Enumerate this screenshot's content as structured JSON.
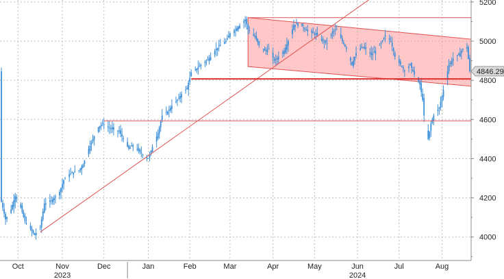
{
  "chart_data": {
    "type": "candlestick",
    "title": "",
    "xlabel": "",
    "ylabel": "",
    "ylim": [
      3880,
      5210
    ],
    "x_range": [
      "2023-10-01",
      "2024-09-05"
    ],
    "grid": true,
    "y_ticks": [
      4000,
      4200,
      4400,
      4600,
      4800,
      5000,
      5200
    ],
    "y_tick_labels": [
      "4000",
      "4200",
      "4400",
      "4600",
      "4800",
      "5000",
      "5200"
    ],
    "x_ticks": [
      {
        "date": "2023-10-14",
        "label": "Oct"
      },
      {
        "date": "2023-11-15",
        "label": "Nov"
      },
      {
        "date": "2023-12-15",
        "label": "Dec"
      },
      {
        "date": "2024-01-16",
        "label": "Jan"
      },
      {
        "date": "2024-02-15",
        "label": "Feb"
      },
      {
        "date": "2024-03-15",
        "label": "Mar"
      },
      {
        "date": "2024-04-15",
        "label": "Apr"
      },
      {
        "date": "2024-05-15",
        "label": "May"
      },
      {
        "date": "2024-06-15",
        "label": "Jun"
      },
      {
        "date": "2024-07-15",
        "label": "Jul"
      },
      {
        "date": "2024-08-15",
        "label": "Aug"
      }
    ],
    "year_labels": [
      {
        "date": "2023-11-15",
        "label": "2023"
      },
      {
        "date": "2024-06-15",
        "label": "2024"
      }
    ],
    "last_value": 4846.29,
    "last_value_label": "4846.29",
    "series_color": "#3b8fd9",
    "price_path": [
      [
        "2023-10-02",
        4180
      ],
      [
        "2023-10-05",
        4090
      ],
      [
        "2023-10-09",
        4140
      ],
      [
        "2023-10-12",
        4210
      ],
      [
        "2023-10-16",
        4150
      ],
      [
        "2023-10-19",
        4080
      ],
      [
        "2023-10-23",
        4040
      ],
      [
        "2023-10-26",
        4010
      ],
      [
        "2023-10-30",
        4050
      ],
      [
        "2023-11-02",
        4170
      ],
      [
        "2023-11-06",
        4180
      ],
      [
        "2023-11-09",
        4200
      ],
      [
        "2023-11-13",
        4230
      ],
      [
        "2023-11-16",
        4290
      ],
      [
        "2023-11-20",
        4320
      ],
      [
        "2023-11-23",
        4330
      ],
      [
        "2023-11-27",
        4340
      ],
      [
        "2023-11-30",
        4370
      ],
      [
        "2023-12-04",
        4450
      ],
      [
        "2023-12-07",
        4500
      ],
      [
        "2023-12-11",
        4560
      ],
      [
        "2023-12-14",
        4580
      ],
      [
        "2023-12-18",
        4560
      ],
      [
        "2023-12-21",
        4550
      ],
      [
        "2023-12-26",
        4540
      ],
      [
        "2023-12-29",
        4500
      ],
      [
        "2024-01-02",
        4450
      ],
      [
        "2024-01-05",
        4470
      ],
      [
        "2024-01-09",
        4440
      ],
      [
        "2024-01-12",
        4420
      ],
      [
        "2024-01-16",
        4400
      ],
      [
        "2024-01-19",
        4460
      ],
      [
        "2024-01-23",
        4530
      ],
      [
        "2024-01-26",
        4620
      ],
      [
        "2024-01-30",
        4640
      ],
      [
        "2024-02-02",
        4670
      ],
      [
        "2024-02-06",
        4700
      ],
      [
        "2024-02-09",
        4730
      ],
      [
        "2024-02-13",
        4760
      ],
      [
        "2024-02-16",
        4840
      ],
      [
        "2024-02-20",
        4860
      ],
      [
        "2024-02-23",
        4880
      ],
      [
        "2024-02-27",
        4900
      ],
      [
        "2024-03-01",
        4920
      ],
      [
        "2024-03-05",
        4960
      ],
      [
        "2024-03-08",
        4980
      ],
      [
        "2024-03-12",
        5000
      ],
      [
        "2024-03-15",
        5040
      ],
      [
        "2024-03-19",
        5060
      ],
      [
        "2024-03-22",
        5080
      ],
      [
        "2024-03-26",
        5110
      ],
      [
        "2024-03-28",
        5060
      ],
      [
        "2024-04-02",
        5020
      ],
      [
        "2024-04-05",
        4980
      ],
      [
        "2024-04-09",
        4950
      ],
      [
        "2024-04-12",
        4960
      ],
      [
        "2024-04-16",
        4900
      ],
      [
        "2024-04-19",
        4920
      ],
      [
        "2024-04-23",
        4950
      ],
      [
        "2024-04-26",
        5000
      ],
      [
        "2024-04-30",
        5080
      ],
      [
        "2024-05-03",
        5090
      ],
      [
        "2024-05-07",
        5070
      ],
      [
        "2024-05-10",
        5050
      ],
      [
        "2024-05-14",
        5040
      ],
      [
        "2024-05-17",
        5030
      ],
      [
        "2024-05-21",
        5000
      ],
      [
        "2024-05-24",
        4990
      ],
      [
        "2024-05-28",
        5050
      ],
      [
        "2024-05-31",
        5060
      ],
      [
        "2024-06-04",
        5000
      ],
      [
        "2024-06-07",
        4960
      ],
      [
        "2024-06-11",
        4880
      ],
      [
        "2024-06-14",
        4940
      ],
      [
        "2024-06-18",
        4970
      ],
      [
        "2024-06-21",
        4960
      ],
      [
        "2024-06-25",
        4930
      ],
      [
        "2024-06-28",
        4950
      ],
      [
        "2024-07-02",
        4990
      ],
      [
        "2024-07-05",
        5030
      ],
      [
        "2024-07-09",
        5000
      ],
      [
        "2024-07-12",
        4920
      ],
      [
        "2024-07-16",
        4880
      ],
      [
        "2024-07-19",
        4850
      ],
      [
        "2024-07-23",
        4880
      ],
      [
        "2024-07-26",
        4830
      ],
      [
        "2024-07-30",
        4780
      ],
      [
        "2024-08-01",
        4700
      ],
      [
        "2024-08-02",
        4620
      ],
      [
        "2024-08-05",
        4500
      ],
      [
        "2024-08-07",
        4580
      ],
      [
        "2024-08-09",
        4620
      ],
      [
        "2024-08-13",
        4660
      ],
      [
        "2024-08-16",
        4750
      ],
      [
        "2024-08-20",
        4880
      ],
      [
        "2024-08-23",
        4910
      ],
      [
        "2024-08-27",
        4930
      ],
      [
        "2024-08-30",
        4960
      ],
      [
        "2024-09-02",
        4970
      ],
      [
        "2024-09-04",
        4846.29
      ]
    ],
    "channel_band": {
      "color": "#ff9999",
      "upper": [
        [
          "2024-03-28",
          5120
        ],
        [
          "2024-09-05",
          5010
        ]
      ],
      "lower": [
        [
          "2024-03-28",
          4870
        ],
        [
          "2024-09-05",
          4770
        ]
      ]
    },
    "lines": [
      {
        "name": "uptrend",
        "color": "#e05050",
        "points": [
          [
            "2023-10-30",
            4025
          ],
          [
            "2024-07-03",
            5260
          ]
        ]
      },
      {
        "name": "resistance-5120",
        "color": "#e05050",
        "points": [
          [
            "2024-03-28",
            5120
          ],
          [
            "2024-09-05",
            5120
          ]
        ]
      },
      {
        "name": "support-4800",
        "color": "#e03030",
        "thick": true,
        "points": [
          [
            "2024-02-16",
            4807
          ],
          [
            "2024-09-05",
            4807
          ]
        ]
      },
      {
        "name": "support-4593",
        "color": "#e05050",
        "points": [
          [
            "2023-12-15",
            4593
          ],
          [
            "2024-09-05",
            4593
          ]
        ]
      }
    ]
  }
}
